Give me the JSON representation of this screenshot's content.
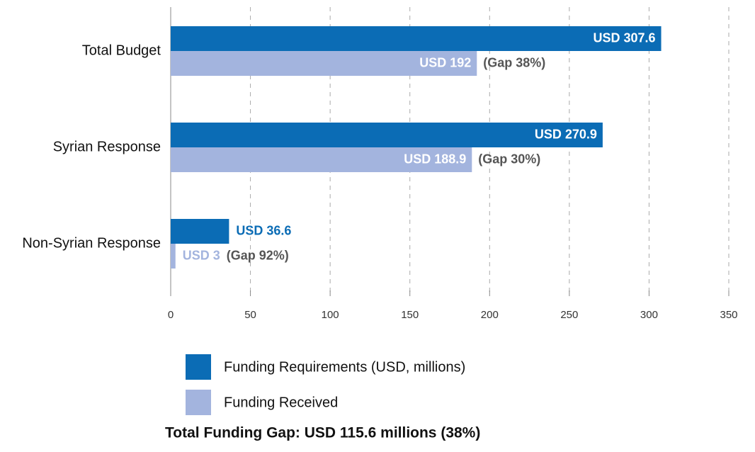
{
  "chart_data": {
    "type": "hbar",
    "categories": [
      "Total Budget",
      "Syrian Response",
      "Non-Syrian Response"
    ],
    "series": [
      {
        "name": "Funding Requirements (USD, millions)",
        "color": "#0b6cb5",
        "values": [
          307.6,
          270.9,
          36.6
        ],
        "value_labels": [
          "USD 307.6",
          "USD 270.9",
          "USD 36.6"
        ]
      },
      {
        "name": "Funding Received",
        "color": "#a3b4de",
        "values": [
          192,
          188.9,
          3
        ],
        "value_labels": [
          "USD 192",
          "USD 188.9",
          "USD 3"
        ]
      }
    ],
    "annotations": [
      "(Gap 38%)",
      "(Gap 30%)",
      "(Gap 92%)"
    ],
    "xlim": [
      0,
      350
    ],
    "xticks": [
      0,
      50,
      100,
      150,
      200,
      250,
      300,
      350
    ],
    "grid": true,
    "legend": "bottom",
    "note": "Total Funding Gap: USD 115.6 millions (38%)"
  }
}
